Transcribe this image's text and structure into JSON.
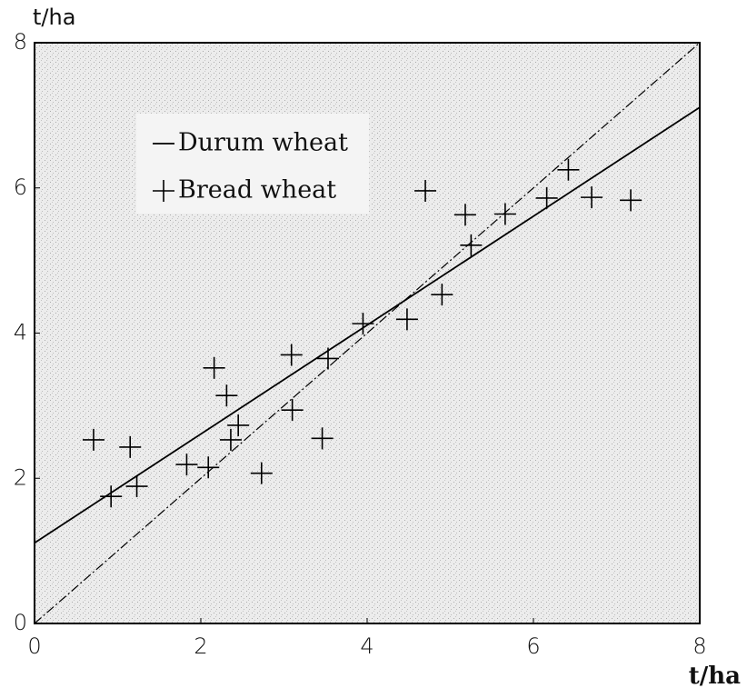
{
  "chart_data": {
    "type": "scatter",
    "ylabel": "t/ha",
    "xlabel": "t/ha",
    "xlim": [
      0,
      8
    ],
    "ylim": [
      0,
      8
    ],
    "xticks": [
      0,
      2,
      4,
      6,
      8
    ],
    "yticks": [
      0,
      2,
      4,
      6,
      8
    ],
    "series": [
      {
        "name": "Durum wheat",
        "type": "line",
        "color": "#000000",
        "x": [
          0,
          8
        ],
        "values": [
          1.11,
          7.11
        ]
      },
      {
        "type": "line",
        "color": "#000000",
        "dashed": true,
        "x": [
          0,
          8
        ],
        "values": [
          0,
          8
        ]
      },
      {
        "name": "Bread wheat",
        "type": "scatter",
        "color": "#000000",
        "x": [
          0.71,
          1.15,
          0.92,
          1.23,
          1.83,
          2.09,
          2.16,
          2.31,
          2.36,
          2.45,
          2.73,
          3.09,
          3.1,
          3.46,
          3.53,
          3.95,
          4.48,
          4.7,
          4.9,
          5.18,
          5.25,
          5.66,
          6.16,
          6.42,
          6.7,
          7.17
        ],
        "values": [
          2.53,
          2.43,
          1.75,
          1.89,
          2.19,
          2.15,
          3.52,
          3.14,
          2.53,
          2.73,
          2.07,
          3.7,
          2.94,
          2.55,
          3.65,
          4.13,
          4.19,
          5.96,
          4.53,
          5.63,
          5.21,
          5.64,
          5.86,
          6.25,
          5.87,
          5.83
        ]
      }
    ],
    "legend": "upper left"
  }
}
